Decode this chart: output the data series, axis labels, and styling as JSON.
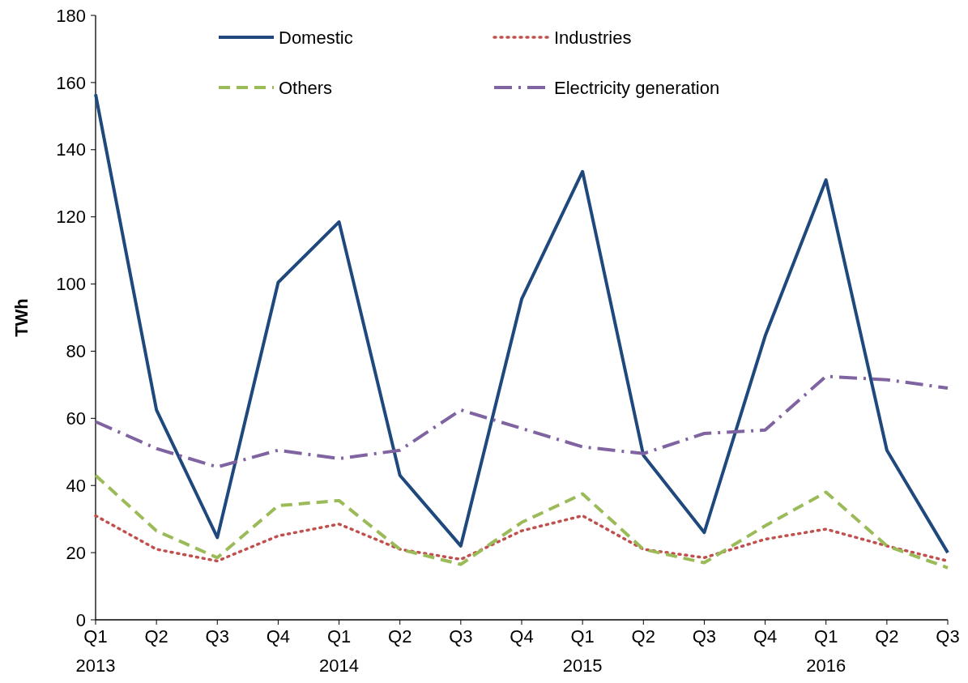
{
  "chart_data": {
    "type": "line",
    "ylabel": "TWh",
    "categories": [
      "Q1\n2013",
      "Q2",
      "Q3",
      "Q4",
      "Q1\n2014",
      "Q2",
      "Q3",
      "Q4",
      "Q1\n2015",
      "Q2",
      "Q3",
      "Q4",
      "Q1\n2016",
      "Q2",
      "Q3"
    ],
    "series": [
      {
        "name": "Domestic",
        "color": "#1f497d",
        "line_style": "solid",
        "values": [
          156.5,
          62.5,
          24.5,
          100.5,
          118.5,
          43,
          22,
          95.5,
          133.5,
          49,
          26,
          84.5,
          131,
          50.5,
          20
        ]
      },
      {
        "name": "Industries",
        "color": "#c0504d",
        "line_style": "dotted",
        "values": [
          31,
          21,
          17.5,
          25,
          28.5,
          21,
          18,
          26.5,
          31,
          21,
          18.5,
          24,
          27,
          22,
          17.5
        ]
      },
      {
        "name": "Others",
        "color": "#9bbb59",
        "line_style": "dashed",
        "values": [
          43,
          26.5,
          18.5,
          34,
          35.5,
          21,
          16.5,
          29,
          37.5,
          21,
          17,
          28,
          38,
          22,
          15.5
        ]
      },
      {
        "name": "Electricity generation",
        "color": "#8064a2",
        "line_style": "dashdot",
        "values": [
          59,
          51,
          45.5,
          50.5,
          48,
          50.5,
          62.5,
          57,
          51.5,
          49.5,
          55.5,
          56.5,
          72.5,
          71.5,
          69
        ]
      }
    ],
    "ylim": [
      0,
      180
    ],
    "yticks": [
      0,
      20,
      40,
      60,
      80,
      100,
      120,
      140,
      160,
      180
    ],
    "grid": false,
    "legend": "top",
    "marker": "none"
  }
}
